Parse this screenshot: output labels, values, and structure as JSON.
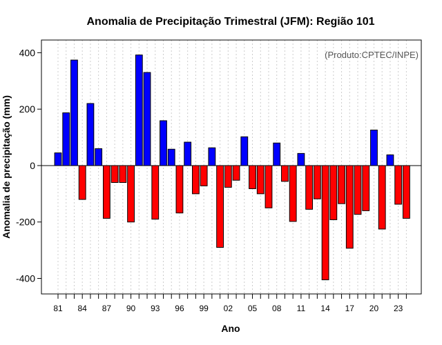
{
  "chart_data": {
    "type": "bar",
    "title": "Anomalia de Precipitação Trimestral (JFM): Região 101",
    "xlabel": "Ano",
    "ylabel": "Anomalia de precipitação (mm)",
    "annotation": "(Produto:CPTEC/INPE)",
    "ylim": [
      -455,
      445
    ],
    "yticks": [
      -400,
      -200,
      0,
      200,
      400
    ],
    "grid": "vertical dotted",
    "positive_color": "#0000ff",
    "negative_color": "#ff0000",
    "categories": [
      "1981",
      "1982",
      "1983",
      "1984",
      "1985",
      "1986",
      "1987",
      "1988",
      "1989",
      "1990",
      "1991",
      "1992",
      "1993",
      "1994",
      "1995",
      "1996",
      "1997",
      "1998",
      "1999",
      "2000",
      "2001",
      "2002",
      "2003",
      "2004",
      "2005",
      "2006",
      "2007",
      "2008",
      "2009",
      "2010",
      "2011",
      "2012",
      "2013",
      "2014",
      "2015",
      "2016",
      "2017",
      "2018",
      "2019",
      "2020",
      "2021",
      "2022",
      "2023",
      "2024"
    ],
    "values": [
      45,
      187,
      374,
      -120,
      220,
      60,
      -187,
      -60,
      -60,
      -200,
      392,
      330,
      -190,
      159,
      58,
      -168,
      83,
      -100,
      -72,
      63,
      -290,
      -77,
      -52,
      102,
      -82,
      -100,
      -150,
      80,
      -56,
      -198,
      43,
      -155,
      -118,
      -405,
      -192,
      -135,
      -293,
      -173,
      -160,
      126,
      -225,
      38,
      -137,
      -187
    ],
    "xtick_labels": [
      "81",
      "84",
      "87",
      "90",
      "93",
      "96",
      "99",
      "02",
      "05",
      "08",
      "11",
      "14",
      "17",
      "20",
      "23"
    ]
  }
}
